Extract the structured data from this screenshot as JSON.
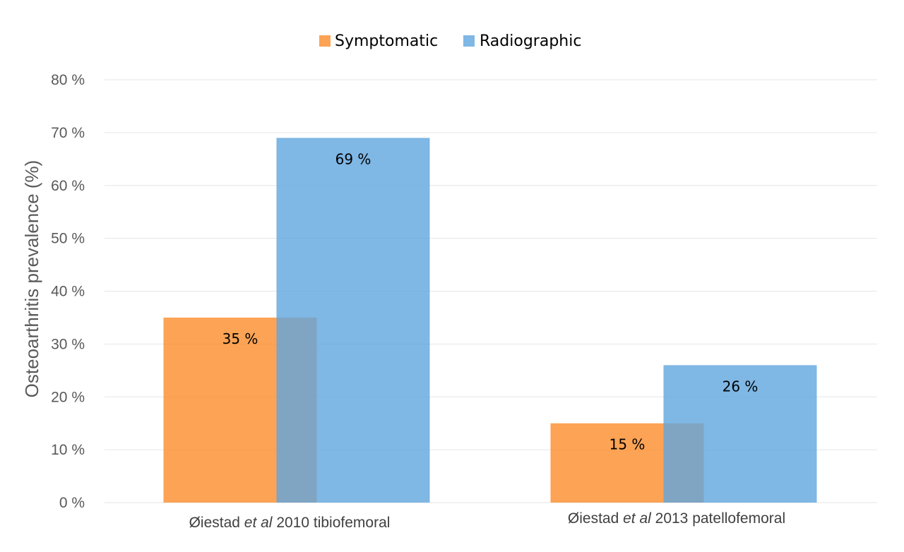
{
  "chart_data": {
    "type": "bar",
    "title": "",
    "ylabel": "Osteoarthritis prevalence (%)",
    "xlabel": "",
    "ylim": [
      0,
      80
    ],
    "yticks": [
      0,
      10,
      20,
      30,
      40,
      50,
      60,
      70,
      80
    ],
    "ytick_suffix": " %",
    "grid": true,
    "legend_position": "top",
    "categories": [
      {
        "pre": "Øiestad ",
        "italic": "et al",
        "post": "  2010 tibiofemoral"
      },
      {
        "pre": "Øiestad ",
        "italic": "et al",
        "post": "  2013 patellofemoral"
      }
    ],
    "series": [
      {
        "name": "Symptomatic",
        "values": [
          35,
          15
        ],
        "labels": [
          "35 %",
          "15 %"
        ],
        "color": "#fb8c2b"
      },
      {
        "name": "Radiographic",
        "values": [
          69,
          26
        ],
        "labels": [
          "69 %",
          "26 %"
        ],
        "color": "#5fa5de"
      }
    ],
    "bar_opacity": 0.8
  }
}
